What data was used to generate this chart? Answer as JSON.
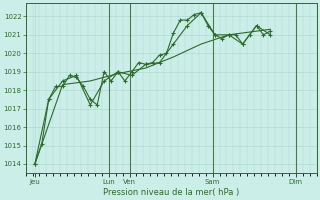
{
  "bg_color": "#cceee8",
  "grid_color": "#aad4ce",
  "line_color": "#2d6a2d",
  "xlabel": "Pression niveau de la mer( hPa )",
  "ylim": [
    1013.5,
    1022.7
  ],
  "yticks": [
    1014,
    1015,
    1016,
    1017,
    1018,
    1019,
    1020,
    1021,
    1022
  ],
  "xlim": [
    0,
    252
  ],
  "xtick_positions": [
    8,
    72,
    90,
    162,
    234
  ],
  "xtick_labels": [
    "Jeu",
    "Lun",
    "Ven",
    "Sam",
    "Dim"
  ],
  "vlines": [
    72,
    90,
    162,
    234
  ],
  "series1": [
    [
      8,
      1014.0
    ],
    [
      14,
      1015.1
    ],
    [
      20,
      1017.5
    ],
    [
      26,
      1018.2
    ],
    [
      32,
      1018.2
    ],
    [
      38,
      1018.8
    ],
    [
      44,
      1018.7
    ],
    [
      50,
      1018.2
    ],
    [
      56,
      1017.5
    ],
    [
      62,
      1017.2
    ],
    [
      68,
      1019.0
    ],
    [
      74,
      1018.5
    ],
    [
      80,
      1019.0
    ],
    [
      86,
      1018.5
    ],
    [
      92,
      1019.0
    ],
    [
      98,
      1019.5
    ],
    [
      104,
      1019.4
    ],
    [
      110,
      1019.5
    ],
    [
      116,
      1019.9
    ],
    [
      122,
      1020.0
    ],
    [
      128,
      1021.1
    ],
    [
      134,
      1021.8
    ],
    [
      140,
      1021.8
    ],
    [
      146,
      1022.1
    ],
    [
      152,
      1022.2
    ],
    [
      158,
      1021.5
    ],
    [
      164,
      1021.0
    ],
    [
      170,
      1020.8
    ],
    [
      176,
      1021.0
    ],
    [
      182,
      1021.0
    ],
    [
      188,
      1020.5
    ],
    [
      194,
      1021.0
    ],
    [
      200,
      1021.5
    ],
    [
      206,
      1021.0
    ],
    [
      212,
      1021.2
    ]
  ],
  "series2": [
    [
      8,
      1014.0
    ],
    [
      20,
      1017.5
    ],
    [
      32,
      1018.5
    ],
    [
      44,
      1018.8
    ],
    [
      56,
      1017.2
    ],
    [
      68,
      1018.5
    ],
    [
      80,
      1019.0
    ],
    [
      92,
      1018.8
    ],
    [
      104,
      1019.4
    ],
    [
      116,
      1019.5
    ],
    [
      128,
      1020.5
    ],
    [
      140,
      1021.5
    ],
    [
      152,
      1022.2
    ],
    [
      164,
      1021.0
    ],
    [
      176,
      1021.0
    ],
    [
      188,
      1020.5
    ],
    [
      200,
      1021.5
    ],
    [
      212,
      1021.0
    ]
  ],
  "series3": [
    [
      8,
      1014.0
    ],
    [
      32,
      1018.3
    ],
    [
      56,
      1018.5
    ],
    [
      80,
      1018.9
    ],
    [
      104,
      1019.2
    ],
    [
      128,
      1019.8
    ],
    [
      152,
      1020.5
    ],
    [
      176,
      1021.0
    ],
    [
      200,
      1021.2
    ],
    [
      212,
      1021.3
    ]
  ]
}
